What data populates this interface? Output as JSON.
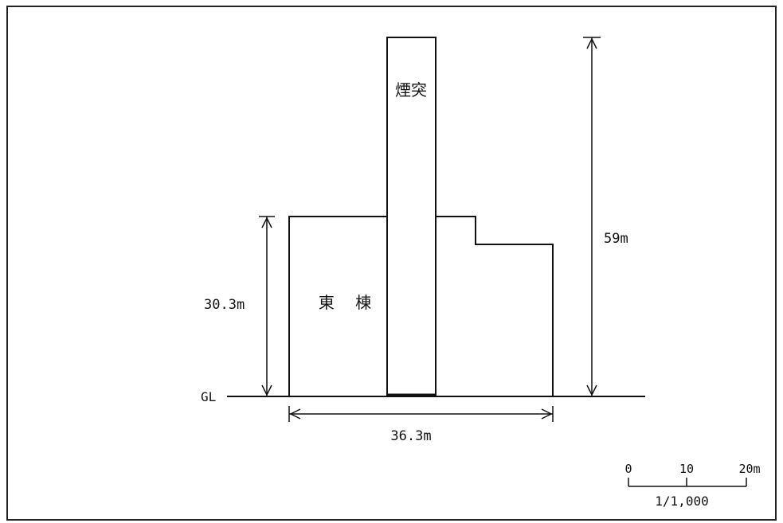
{
  "drawing": {
    "chimney_label": "煙突",
    "building_label": "東 棟",
    "ground_label": "GL",
    "height_building": "30.3m",
    "height_chimney": "59m",
    "width_building": "36.3m",
    "scale": {
      "tick_0": "0",
      "tick_10": "10",
      "tick_20": "20m",
      "ratio": "1/1,000"
    }
  }
}
